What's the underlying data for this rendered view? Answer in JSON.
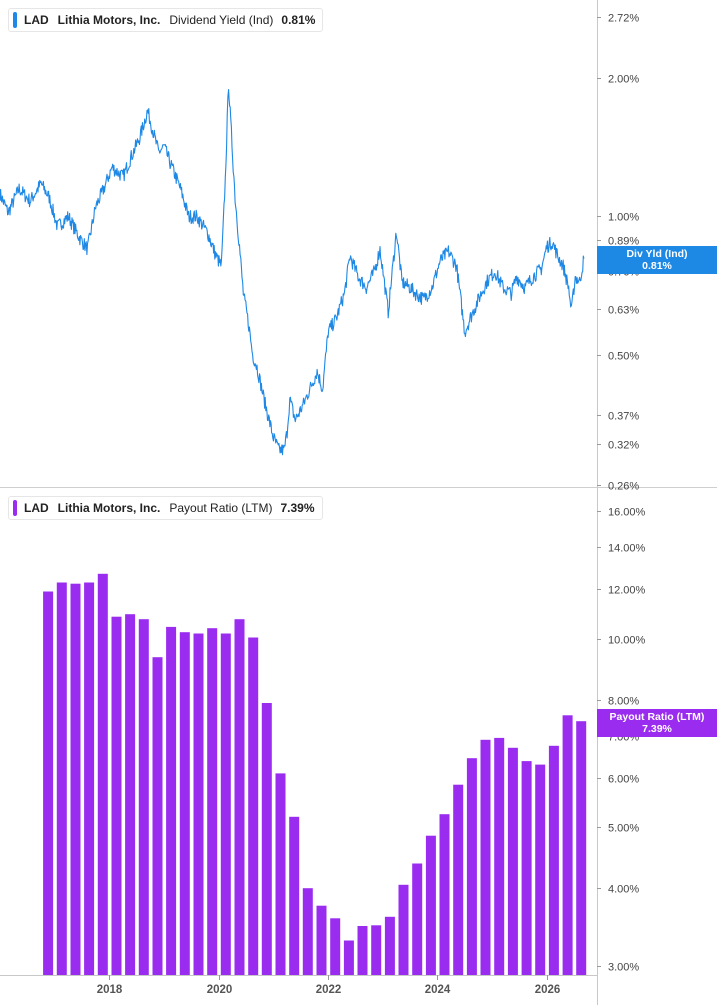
{
  "colors": {
    "line": "#1e88e5",
    "bar": "#9a2cf0",
    "axis": "#bbbbbb",
    "grid": "#e9e9e9",
    "text": "#444444"
  },
  "panels": {
    "top": {
      "ticker": "LAD",
      "company": "Lithia Motors, Inc.",
      "metric": "Dividend Yield (Ind)",
      "value": "0.81%",
      "tag_line1": "Div Yld (Ind)",
      "tag_line2": "0.81%",
      "y_tick_labels": [
        "2.72%",
        "2.00%",
        "1.00%",
        "0.89%",
        "0.76%",
        "0.63%",
        "0.50%",
        "0.37%",
        "0.32%",
        "0.26%"
      ]
    },
    "bottom": {
      "ticker": "LAD",
      "company": "Lithia Motors, Inc.",
      "metric": "Payout Ratio (LTM)",
      "value": "7.39%",
      "tag_line1": "Payout Ratio (LTM)",
      "tag_line2": "7.39%",
      "y_tick_labels": [
        "16.00%",
        "14.00%",
        "12.00%",
        "10.00%",
        "8.00%",
        "7.00%",
        "6.00%",
        "5.00%",
        "4.00%",
        "3.00%"
      ]
    }
  },
  "x_tick_labels": [
    "2018",
    "2020",
    "2022",
    "2024",
    "2026"
  ],
  "chart_data": [
    {
      "type": "line",
      "title": "LAD Lithia Motors, Inc. Dividend Yield (Ind) 0.81%",
      "scale": "log",
      "ylim": [
        0.26,
        2.72
      ],
      "y_ticks": [
        2.72,
        2.0,
        1.0,
        0.89,
        0.76,
        0.63,
        0.5,
        0.37,
        0.32,
        0.26
      ],
      "series": [
        {
          "name": "Div Yld (Ind)",
          "x": [
            2016.0,
            2016.15,
            2016.35,
            2016.55,
            2016.75,
            2016.9,
            2017.05,
            2017.25,
            2017.45,
            2017.6,
            2017.75,
            2017.9,
            2018.05,
            2018.25,
            2018.4,
            2018.55,
            2018.7,
            2018.9,
            2019.0,
            2019.1,
            2019.3,
            2019.45,
            2019.6,
            2019.8,
            2019.95,
            2020.05,
            2020.12,
            2020.18,
            2020.22,
            2020.3,
            2020.38,
            2020.45,
            2020.55,
            2020.62,
            2020.7,
            2020.85,
            2021.0,
            2021.1,
            2021.2,
            2021.25,
            2021.3,
            2021.4,
            2021.55,
            2021.7,
            2021.8,
            2021.9,
            2022.0,
            2022.15,
            2022.3,
            2022.4,
            2022.55,
            2022.7,
            2022.85,
            2022.95,
            2023.1,
            2023.25,
            2023.35,
            2023.5,
            2023.6,
            2023.75,
            2023.9,
            2024.05,
            2024.2,
            2024.35,
            2024.5,
            2024.6,
            2024.75,
            2024.9,
            2025.05,
            2025.2,
            2025.35,
            2025.45,
            2025.6,
            2025.75,
            2025.9,
            2026.0,
            2026.1,
            2026.2,
            2026.3,
            2026.4,
            2026.45,
            2026.52,
            2026.6,
            2026.68
          ],
          "y": [
            1.12,
            1.02,
            1.15,
            1.08,
            1.18,
            1.1,
            0.95,
            1.0,
            0.9,
            0.85,
            1.05,
            1.15,
            1.28,
            1.22,
            1.35,
            1.48,
            1.7,
            1.38,
            1.42,
            1.32,
            1.15,
            1.0,
            1.0,
            0.92,
            0.82,
            0.78,
            1.2,
            1.95,
            1.6,
            1.1,
            0.86,
            0.68,
            0.58,
            0.5,
            0.47,
            0.39,
            0.33,
            0.31,
            0.31,
            0.34,
            0.4,
            0.36,
            0.39,
            0.43,
            0.46,
            0.42,
            0.56,
            0.6,
            0.68,
            0.82,
            0.74,
            0.7,
            0.76,
            0.85,
            0.62,
            0.93,
            0.72,
            0.7,
            0.68,
            0.66,
            0.7,
            0.8,
            0.84,
            0.78,
            0.56,
            0.6,
            0.66,
            0.72,
            0.76,
            0.7,
            0.68,
            0.74,
            0.7,
            0.74,
            0.77,
            0.86,
            0.88,
            0.82,
            0.78,
            0.7,
            0.62,
            0.74,
            0.72,
            0.81
          ]
        }
      ]
    },
    {
      "type": "bar",
      "title": "LAD Lithia Motors, Inc. Payout Ratio (LTM) 7.39%",
      "scale": "log",
      "ylim": [
        2.95,
        16.0
      ],
      "y_ticks": [
        16.0,
        14.0,
        12.0,
        10.0,
        8.0,
        7.0,
        6.0,
        5.0,
        4.0,
        3.0
      ],
      "series": [
        {
          "name": "Payout Ratio (LTM)",
          "x": [
            2016.88,
            2017.13,
            2017.38,
            2017.63,
            2017.88,
            2018.13,
            2018.38,
            2018.63,
            2018.88,
            2019.13,
            2019.38,
            2019.63,
            2019.88,
            2020.13,
            2020.38,
            2020.63,
            2020.88,
            2021.13,
            2021.38,
            2021.63,
            2021.88,
            2022.13,
            2022.38,
            2022.63,
            2022.88,
            2023.13,
            2023.38,
            2023.63,
            2023.88,
            2024.13,
            2024.38,
            2024.63,
            2024.88,
            2025.13,
            2025.38,
            2025.63,
            2025.88,
            2026.13,
            2026.38,
            2026.63
          ],
          "values": [
            11.9,
            12.3,
            12.25,
            12.3,
            12.7,
            10.85,
            10.95,
            10.75,
            9.35,
            10.45,
            10.25,
            10.2,
            10.4,
            10.2,
            10.75,
            10.05,
            7.9,
            6.1,
            5.2,
            4.0,
            3.75,
            3.58,
            3.3,
            3.48,
            3.49,
            3.6,
            4.05,
            4.38,
            4.85,
            5.25,
            5.85,
            6.45,
            6.9,
            6.95,
            6.7,
            6.38,
            6.3,
            6.75,
            7.55,
            7.39
          ]
        }
      ]
    }
  ]
}
